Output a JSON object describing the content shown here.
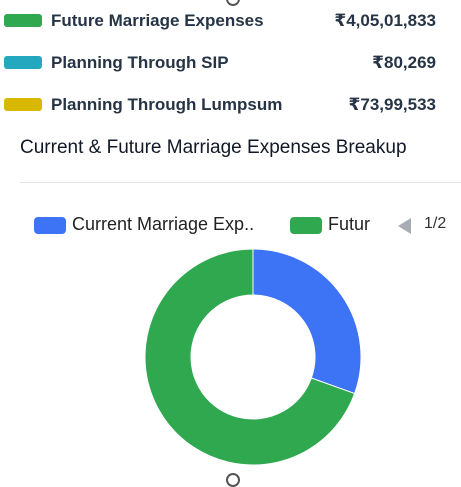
{
  "summary": {
    "rows": [
      {
        "label": "Future Marriage Expenses",
        "value": "₹4,05,01,833",
        "color": "#2fa84f"
      },
      {
        "label": "Planning Through SIP",
        "value": "₹80,269",
        "color": "#23a8c0"
      },
      {
        "label": "Planning Through Lumpsum",
        "value": "₹73,99,533",
        "color": "#d8b800"
      }
    ]
  },
  "breakup": {
    "title": "Current & Future Marriage Expenses Breakup"
  },
  "chart_data": {
    "type": "pie",
    "style": "donut",
    "legend_placement": "top",
    "legend": {
      "items": [
        {
          "label": "Current Marriage Exp..",
          "color": "#3d73f5"
        },
        {
          "label": "Futur",
          "color": "#2fa84f"
        }
      ],
      "page_indicator": "1/2"
    },
    "slices": [
      {
        "name": "Current Marriage Expenses",
        "value": 0.305,
        "color": "#3d73f5"
      },
      {
        "name": "Future Marriage Expenses",
        "value": 0.695,
        "color": "#2fa84f"
      }
    ]
  },
  "icons": {
    "legend_prev": "chevron-left-icon"
  }
}
